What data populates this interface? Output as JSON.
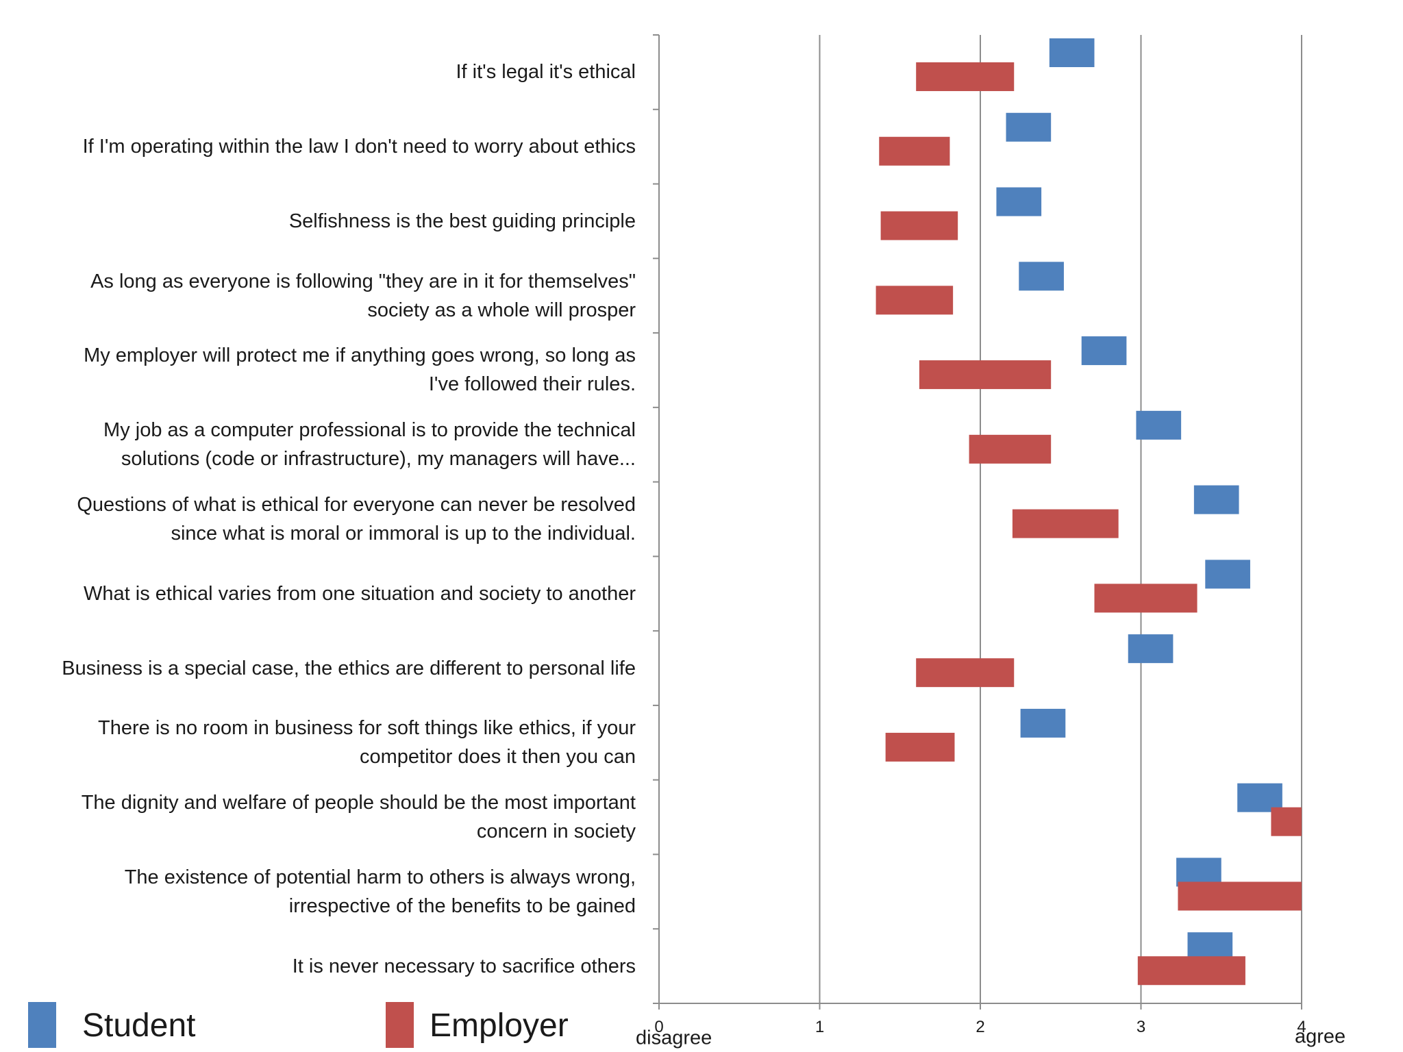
{
  "chart_data": {
    "type": "bar",
    "subtype": "floating-range-horizontal",
    "x_axis": {
      "min": 0,
      "max": 4,
      "ticks": [
        "0",
        "1",
        "2",
        "3",
        "4"
      ],
      "low_label": "disagree",
      "high_label": "agree"
    },
    "categories": [
      "If it's legal it's ethical",
      "If I'm operating within the law I don't need to worry about ethics",
      "Selfishness is the best guiding principle",
      "As long as everyone is following \"they are in it for themselves\"\nsociety as a whole will prosper",
      "My employer will protect me if anything goes wrong, so long as\nI've followed their rules.",
      "My job as a computer professional is to provide the technical\nsolutions (code or infrastructure), my managers will have...",
      "Questions of what is ethical for everyone can never be resolved\nsince what is moral or immoral is up to the individual.",
      "What is ethical varies from one situation and society to another",
      "Business is a special case, the ethics are different to personal life",
      "There is no room in business for soft things like ethics, if your\ncompetitor does it then you can",
      "The dignity and welfare of people should be the most important\nconcern in society",
      "The existence of potential harm to others is always wrong,\nirrespective of the benefits to be gained",
      "It is never necessary to sacrifice others"
    ],
    "series": [
      {
        "name": "Student",
        "color": "#4f81bd",
        "ranges": [
          [
            2.43,
            2.71
          ],
          [
            2.16,
            2.44
          ],
          [
            2.1,
            2.38
          ],
          [
            2.24,
            2.52
          ],
          [
            2.63,
            2.91
          ],
          [
            2.97,
            3.25
          ],
          [
            3.33,
            3.61
          ],
          [
            3.4,
            3.68
          ],
          [
            2.92,
            3.2
          ],
          [
            2.25,
            2.53
          ],
          [
            3.6,
            3.88
          ],
          [
            3.22,
            3.5
          ],
          [
            3.29,
            3.57
          ]
        ]
      },
      {
        "name": "Employer",
        "color": "#c0504d",
        "ranges": [
          [
            1.6,
            2.21
          ],
          [
            1.37,
            1.81
          ],
          [
            1.38,
            1.86
          ],
          [
            1.35,
            1.83
          ],
          [
            1.62,
            2.44
          ],
          [
            1.93,
            2.44
          ],
          [
            2.2,
            2.86
          ],
          [
            2.71,
            3.35
          ],
          [
            1.6,
            2.21
          ],
          [
            1.41,
            1.84
          ],
          [
            3.81,
            4.0
          ],
          [
            3.23,
            4.0
          ],
          [
            2.98,
            3.65
          ]
        ]
      }
    ]
  }
}
